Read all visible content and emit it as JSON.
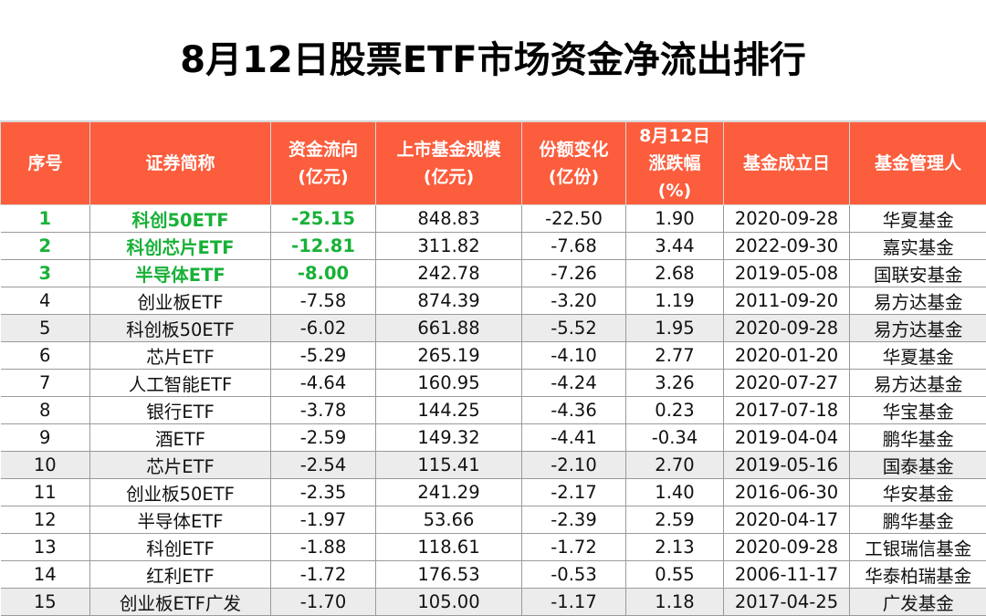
{
  "title": "8月12日股票ETF市场资金净流出排行",
  "columns": [
    {
      "line1": "序号",
      "line2": "",
      "line3": ""
    },
    {
      "line1": "证券简称",
      "line2": "",
      "line3": ""
    },
    {
      "line1": "资金流向",
      "line2": "(亿元)",
      "line3": ""
    },
    {
      "line1": "上市基金规模",
      "line2": "(亿元)",
      "line3": ""
    },
    {
      "line1": "份额变化",
      "line2": "(亿份)",
      "line3": ""
    },
    {
      "line1": "8月12日",
      "line2": "涨跌幅",
      "line3": "(%)"
    },
    {
      "line1": "基金成立日",
      "line2": "",
      "line3": ""
    },
    {
      "line1": "基金管理人",
      "line2": "",
      "line3": ""
    }
  ],
  "rows": [
    {
      "rank": "1",
      "name": "科创50ETF",
      "flow": "-25.15",
      "scale": "848.83",
      "share": "-22.50",
      "pct": "1.90",
      "date": "2020-09-28",
      "manager": "华夏基金"
    },
    {
      "rank": "2",
      "name": "科创芯片ETF",
      "flow": "-12.81",
      "scale": "311.82",
      "share": "-7.68",
      "pct": "3.44",
      "date": "2022-09-30",
      "manager": "嘉实基金"
    },
    {
      "rank": "3",
      "name": "半导体ETF",
      "flow": "-8.00",
      "scale": "242.78",
      "share": "-7.26",
      "pct": "2.68",
      "date": "2019-05-08",
      "manager": "国联安基金"
    },
    {
      "rank": "4",
      "name": "创业板ETF",
      "flow": "-7.58",
      "scale": "874.39",
      "share": "-3.20",
      "pct": "1.19",
      "date": "2011-09-20",
      "manager": "易方达基金"
    },
    {
      "rank": "5",
      "name": "科创板50ETF",
      "flow": "-6.02",
      "scale": "661.88",
      "share": "-5.52",
      "pct": "1.95",
      "date": "2020-09-28",
      "manager": "易方达基金"
    },
    {
      "rank": "6",
      "name": "芯片ETF",
      "flow": "-5.29",
      "scale": "265.19",
      "share": "-4.10",
      "pct": "2.77",
      "date": "2020-01-20",
      "manager": "华夏基金"
    },
    {
      "rank": "7",
      "name": "人工智能ETF",
      "flow": "-4.64",
      "scale": "160.95",
      "share": "-4.24",
      "pct": "3.26",
      "date": "2020-07-27",
      "manager": "易方达基金"
    },
    {
      "rank": "8",
      "name": "银行ETF",
      "flow": "-3.78",
      "scale": "144.25",
      "share": "-4.36",
      "pct": "0.23",
      "date": "2017-07-18",
      "manager": "华宝基金"
    },
    {
      "rank": "9",
      "name": "酒ETF",
      "flow": "-2.59",
      "scale": "149.32",
      "share": "-4.41",
      "pct": "-0.34",
      "date": "2019-04-04",
      "manager": "鹏华基金"
    },
    {
      "rank": "10",
      "name": "芯片ETF",
      "flow": "-2.54",
      "scale": "115.41",
      "share": "-2.10",
      "pct": "2.70",
      "date": "2019-05-16",
      "manager": "国泰基金"
    },
    {
      "rank": "11",
      "name": "创业板50ETF",
      "flow": "-2.35",
      "scale": "241.29",
      "share": "-2.17",
      "pct": "1.40",
      "date": "2016-06-30",
      "manager": "华安基金"
    },
    {
      "rank": "12",
      "name": "半导体ETF",
      "flow": "-1.97",
      "scale": "53.66",
      "share": "-2.39",
      "pct": "2.59",
      "date": "2020-04-17",
      "manager": "鹏华基金"
    },
    {
      "rank": "13",
      "name": "科创ETF",
      "flow": "-1.88",
      "scale": "118.61",
      "share": "-1.72",
      "pct": "2.13",
      "date": "2020-09-28",
      "manager": "工银瑞信基金"
    },
    {
      "rank": "14",
      "name": "红利ETF",
      "flow": "-1.72",
      "scale": "176.53",
      "share": "-0.53",
      "pct": "0.55",
      "date": "2006-11-17",
      "manager": "华泰柏瑞基金"
    },
    {
      "rank": "15",
      "name": "创业板ETF广发",
      "flow": "-1.70",
      "scale": "105.00",
      "share": "-1.17",
      "pct": "1.18",
      "date": "2017-04-25",
      "manager": "广发基金"
    }
  ],
  "highlight_rows": 3,
  "gray_rows": [
    5,
    10,
    15
  ],
  "colors": {
    "header_bg": "#fb5d3d",
    "highlight_text": "#18b137",
    "stripe_bg": "#ececec"
  }
}
